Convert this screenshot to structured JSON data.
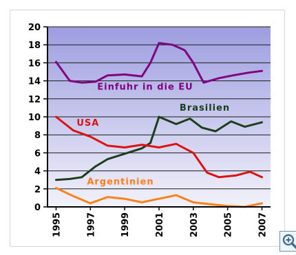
{
  "chart_data": {
    "type": "line",
    "x": [
      1995,
      1996,
      1997,
      1998,
      1999,
      2000,
      2001,
      2002,
      2003,
      2004,
      2005,
      2006,
      2007
    ],
    "xticks": [
      "1995",
      "1997",
      "1999",
      "2001",
      "2003",
      "2005",
      "2007"
    ],
    "xtick_values": [
      1995,
      1997,
      1999,
      2001,
      2003,
      2005,
      2007
    ],
    "xlim": [
      1994.5,
      2007.5
    ],
    "ylim": [
      0,
      20
    ],
    "yticks": [
      "0",
      "2",
      "4",
      "6",
      "8",
      "10",
      "12",
      "14",
      "16",
      "18",
      "20"
    ],
    "grid": true,
    "background_gradient": [
      "#9d9de0",
      "#f2f2fb"
    ],
    "series": [
      {
        "name": "Einfuhr in die EU",
        "color": "#800080",
        "x": [
          1995,
          1995.8,
          1996.5,
          1997.3,
          1998,
          1999,
          2000,
          2000.5,
          2001,
          2001.8,
          2002.5,
          2003,
          2003.6,
          2004.5,
          2005.3,
          2006.2,
          2007
        ],
        "values": [
          16.1,
          14.0,
          13.8,
          13.9,
          14.6,
          14.7,
          14.5,
          16.0,
          18.2,
          18.0,
          17.4,
          16.0,
          13.8,
          14.3,
          14.6,
          14.9,
          15.1
        ]
      },
      {
        "name": "Brasilien",
        "color": "#1a3d1a",
        "x": [
          1995,
          1995.8,
          1996.5,
          1997.3,
          1998,
          1999,
          2000,
          2000.5,
          2001,
          2002,
          2002.8,
          2003.5,
          2004.3,
          2005.2,
          2006,
          2007
        ],
        "values": [
          3.0,
          3.1,
          3.3,
          4.5,
          5.3,
          5.9,
          6.5,
          7.1,
          10.0,
          9.2,
          9.8,
          8.8,
          8.4,
          9.5,
          8.9,
          9.4
        ]
      },
      {
        "name": "USA",
        "color": "#dd1111",
        "x": [
          1995,
          1996,
          1997,
          1998,
          1999,
          2000,
          2001,
          2002,
          2003,
          2003.8,
          2004.5,
          2005.5,
          2006.3,
          2007
        ],
        "values": [
          10.0,
          8.5,
          7.8,
          6.8,
          6.6,
          6.9,
          6.6,
          7.0,
          6.0,
          3.8,
          3.3,
          3.5,
          3.9,
          3.3
        ]
      },
      {
        "name": "Argentinien",
        "color": "#ff7f1a",
        "x": [
          1995,
          1996,
          1997,
          1998,
          1999,
          2000,
          2001,
          2002,
          2003,
          2004,
          2005,
          2006,
          2006.5,
          2007
        ],
        "values": [
          2.1,
          1.2,
          0.4,
          1.1,
          0.9,
          0.5,
          0.9,
          1.3,
          0.5,
          0.3,
          0.1,
          0.0,
          0.2,
          0.4
        ]
      }
    ]
  },
  "zoom_icon": "magnify-plus-icon"
}
